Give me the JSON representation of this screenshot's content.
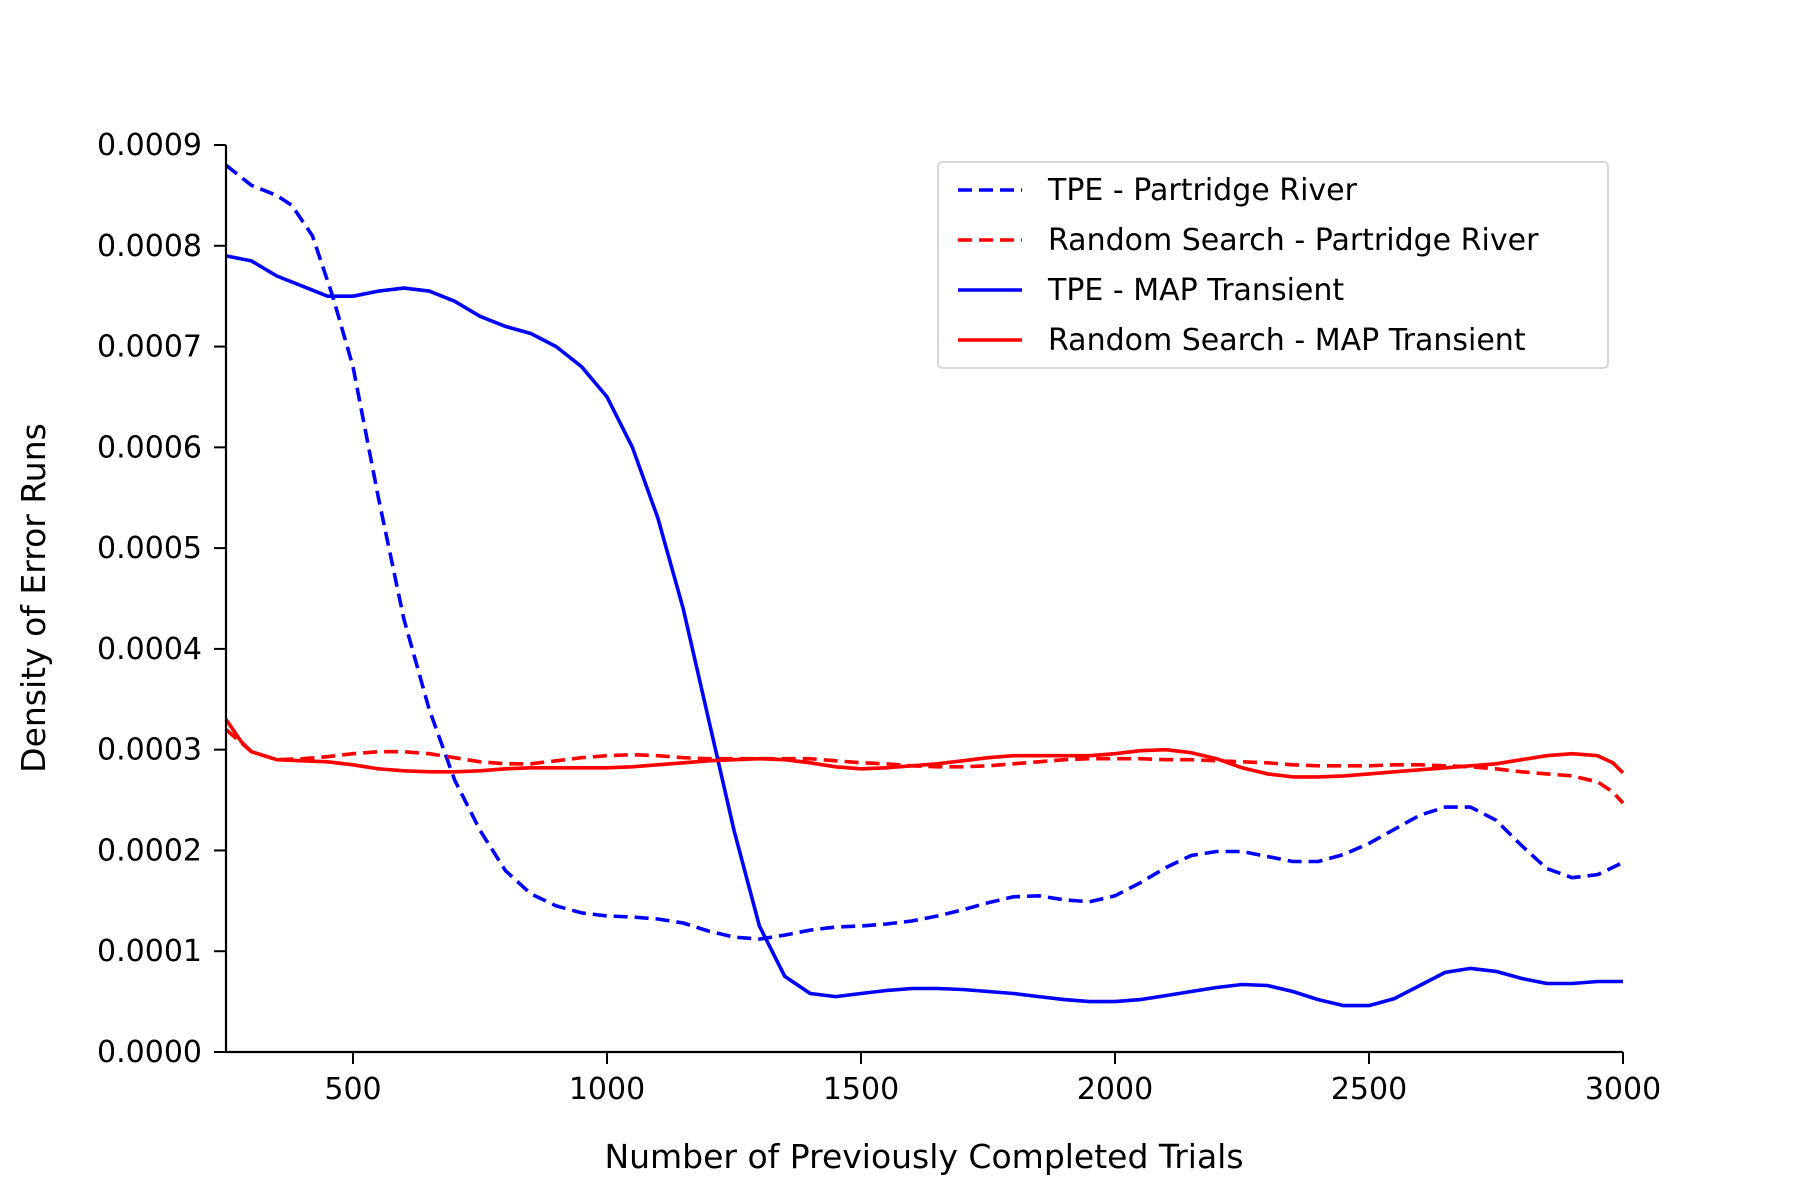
{
  "chart_data": {
    "type": "line",
    "title": "",
    "xlabel": "Number of Previously Completed Trials",
    "ylabel": "Density of Error Runs",
    "xlim": [
      250,
      3000
    ],
    "ylim": [
      0,
      0.0009
    ],
    "xticks": [
      {
        "value": 500,
        "label": "500"
      },
      {
        "value": 1000,
        "label": "1000"
      },
      {
        "value": 1500,
        "label": "1500"
      },
      {
        "value": 2000,
        "label": "2000"
      },
      {
        "value": 2500,
        "label": "2500"
      },
      {
        "value": 3000,
        "label": "3000"
      }
    ],
    "yticks": [
      {
        "value": 0.0,
        "label": "0.0000"
      },
      {
        "value": 0.0001,
        "label": "0.0001"
      },
      {
        "value": 0.0002,
        "label": "0.0002"
      },
      {
        "value": 0.0003,
        "label": "0.0003"
      },
      {
        "value": 0.0004,
        "label": "0.0004"
      },
      {
        "value": 0.0005,
        "label": "0.0005"
      },
      {
        "value": 0.0006,
        "label": "0.0006"
      },
      {
        "value": 0.0007,
        "label": "0.0007"
      },
      {
        "value": 0.0008,
        "label": "0.0008"
      },
      {
        "value": 0.0009,
        "label": "0.0009"
      }
    ],
    "grid": false,
    "legend_position": "top-right",
    "series": [
      {
        "name": "TPE - Partridge River",
        "color": "#0000ff",
        "style": "dashed",
        "points": [
          [
            250,
            0.00088
          ],
          [
            300,
            0.00086
          ],
          [
            350,
            0.00085
          ],
          [
            380,
            0.00084
          ],
          [
            420,
            0.00081
          ],
          [
            460,
            0.00075
          ],
          [
            500,
            0.00068
          ],
          [
            550,
            0.00055
          ],
          [
            600,
            0.00043
          ],
          [
            650,
            0.00034
          ],
          [
            700,
            0.00027
          ],
          [
            750,
            0.00022
          ],
          [
            800,
            0.00018
          ],
          [
            850,
            0.000157
          ],
          [
            900,
            0.000145
          ],
          [
            950,
            0.000138
          ],
          [
            1000,
            0.000135
          ],
          [
            1050,
            0.000134
          ],
          [
            1100,
            0.000132
          ],
          [
            1150,
            0.000128
          ],
          [
            1200,
            0.00012
          ],
          [
            1250,
            0.000114
          ],
          [
            1300,
            0.000112
          ],
          [
            1350,
            0.000116
          ],
          [
            1400,
            0.000121
          ],
          [
            1450,
            0.000124
          ],
          [
            1500,
            0.000125
          ],
          [
            1550,
            0.000127
          ],
          [
            1600,
            0.00013
          ],
          [
            1650,
            0.000135
          ],
          [
            1700,
            0.000141
          ],
          [
            1750,
            0.000148
          ],
          [
            1800,
            0.000154
          ],
          [
            1850,
            0.000155
          ],
          [
            1900,
            0.000151
          ],
          [
            1950,
            0.000149
          ],
          [
            2000,
            0.000155
          ],
          [
            2050,
            0.000168
          ],
          [
            2100,
            0.000183
          ],
          [
            2150,
            0.000195
          ],
          [
            2200,
            0.000199
          ],
          [
            2250,
            0.000199
          ],
          [
            2300,
            0.000194
          ],
          [
            2350,
            0.000189
          ],
          [
            2400,
            0.000189
          ],
          [
            2450,
            0.000196
          ],
          [
            2500,
            0.000207
          ],
          [
            2550,
            0.000221
          ],
          [
            2600,
            0.000235
          ],
          [
            2650,
            0.000243
          ],
          [
            2700,
            0.000243
          ],
          [
            2750,
            0.00023
          ],
          [
            2800,
            0.000205
          ],
          [
            2850,
            0.000182
          ],
          [
            2900,
            0.000173
          ],
          [
            2950,
            0.000176
          ],
          [
            3000,
            0.000188
          ]
        ]
      },
      {
        "name": "Random Search - Partridge River",
        "color": "#ff0000",
        "style": "dashed",
        "points": [
          [
            250,
            0.00032
          ],
          [
            300,
            0.000298
          ],
          [
            350,
            0.00029
          ],
          [
            400,
            0.000291
          ],
          [
            450,
            0.000293
          ],
          [
            500,
            0.000296
          ],
          [
            550,
            0.000298
          ],
          [
            600,
            0.000298
          ],
          [
            650,
            0.000296
          ],
          [
            700,
            0.000292
          ],
          [
            750,
            0.000288
          ],
          [
            800,
            0.000286
          ],
          [
            850,
            0.000286
          ],
          [
            900,
            0.000289
          ],
          [
            950,
            0.000292
          ],
          [
            1000,
            0.000294
          ],
          [
            1050,
            0.000295
          ],
          [
            1100,
            0.000294
          ],
          [
            1150,
            0.000292
          ],
          [
            1200,
            0.000291
          ],
          [
            1250,
            0.000291
          ],
          [
            1300,
            0.000291
          ],
          [
            1350,
            0.000291
          ],
          [
            1400,
            0.000291
          ],
          [
            1450,
            0.000289
          ],
          [
            1500,
            0.000287
          ],
          [
            1550,
            0.000286
          ],
          [
            1600,
            0.000284
          ],
          [
            1650,
            0.000283
          ],
          [
            1700,
            0.000283
          ],
          [
            1750,
            0.000284
          ],
          [
            1800,
            0.000286
          ],
          [
            1850,
            0.000288
          ],
          [
            1900,
            0.00029
          ],
          [
            1950,
            0.000291
          ],
          [
            2000,
            0.000291
          ],
          [
            2050,
            0.000291
          ],
          [
            2100,
            0.00029
          ],
          [
            2150,
            0.00029
          ],
          [
            2200,
            0.000289
          ],
          [
            2250,
            0.000288
          ],
          [
            2300,
            0.000287
          ],
          [
            2350,
            0.000285
          ],
          [
            2400,
            0.000284
          ],
          [
            2450,
            0.000284
          ],
          [
            2500,
            0.000284
          ],
          [
            2550,
            0.000285
          ],
          [
            2600,
            0.000285
          ],
          [
            2650,
            0.000284
          ],
          [
            2700,
            0.000283
          ],
          [
            2750,
            0.000281
          ],
          [
            2800,
            0.000278
          ],
          [
            2850,
            0.000276
          ],
          [
            2900,
            0.000274
          ],
          [
            2950,
            0.000268
          ],
          [
            2980,
            0.000258
          ],
          [
            3000,
            0.000247
          ]
        ]
      },
      {
        "name": "TPE - MAP Transient",
        "color": "#0000ff",
        "style": "solid",
        "points": [
          [
            250,
            0.00079
          ],
          [
            300,
            0.000785
          ],
          [
            350,
            0.00077
          ],
          [
            400,
            0.00076
          ],
          [
            450,
            0.00075
          ],
          [
            500,
            0.00075
          ],
          [
            550,
            0.000755
          ],
          [
            600,
            0.000758
          ],
          [
            650,
            0.000755
          ],
          [
            700,
            0.000745
          ],
          [
            750,
            0.00073
          ],
          [
            800,
            0.00072
          ],
          [
            850,
            0.000713
          ],
          [
            900,
            0.0007
          ],
          [
            950,
            0.00068
          ],
          [
            1000,
            0.00065
          ],
          [
            1050,
            0.0006
          ],
          [
            1100,
            0.00053
          ],
          [
            1150,
            0.00044
          ],
          [
            1200,
            0.00033
          ],
          [
            1250,
            0.00022
          ],
          [
            1300,
            0.000125
          ],
          [
            1350,
            7.5e-05
          ],
          [
            1400,
            5.8e-05
          ],
          [
            1450,
            5.5e-05
          ],
          [
            1500,
            5.8e-05
          ],
          [
            1550,
            6.1e-05
          ],
          [
            1600,
            6.3e-05
          ],
          [
            1650,
            6.3e-05
          ],
          [
            1700,
            6.2e-05
          ],
          [
            1750,
            6e-05
          ],
          [
            1800,
            5.8e-05
          ],
          [
            1850,
            5.5e-05
          ],
          [
            1900,
            5.2e-05
          ],
          [
            1950,
            5e-05
          ],
          [
            2000,
            5e-05
          ],
          [
            2050,
            5.2e-05
          ],
          [
            2100,
            5.6e-05
          ],
          [
            2150,
            6e-05
          ],
          [
            2200,
            6.4e-05
          ],
          [
            2250,
            6.7e-05
          ],
          [
            2300,
            6.6e-05
          ],
          [
            2350,
            6e-05
          ],
          [
            2400,
            5.2e-05
          ],
          [
            2450,
            4.6e-05
          ],
          [
            2500,
            4.6e-05
          ],
          [
            2550,
            5.3e-05
          ],
          [
            2600,
            6.6e-05
          ],
          [
            2650,
            7.9e-05
          ],
          [
            2700,
            8.3e-05
          ],
          [
            2750,
            8e-05
          ],
          [
            2800,
            7.3e-05
          ],
          [
            2850,
            6.8e-05
          ],
          [
            2900,
            6.8e-05
          ],
          [
            2950,
            7e-05
          ],
          [
            3000,
            7e-05
          ]
        ]
      },
      {
        "name": "Random Search - MAP Transient",
        "color": "#ff0000",
        "style": "solid",
        "points": [
          [
            250,
            0.00033
          ],
          [
            280,
            0.000308
          ],
          [
            300,
            0.000298
          ],
          [
            350,
            0.00029
          ],
          [
            400,
            0.000289
          ],
          [
            450,
            0.000288
          ],
          [
            500,
            0.000285
          ],
          [
            550,
            0.000281
          ],
          [
            600,
            0.000279
          ],
          [
            650,
            0.000278
          ],
          [
            700,
            0.000278
          ],
          [
            750,
            0.000279
          ],
          [
            800,
            0.000281
          ],
          [
            850,
            0.000282
          ],
          [
            900,
            0.000282
          ],
          [
            950,
            0.000282
          ],
          [
            1000,
            0.000282
          ],
          [
            1050,
            0.000283
          ],
          [
            1100,
            0.000285
          ],
          [
            1150,
            0.000287
          ],
          [
            1200,
            0.000289
          ],
          [
            1250,
            0.00029
          ],
          [
            1300,
            0.000291
          ],
          [
            1350,
            0.00029
          ],
          [
            1400,
            0.000287
          ],
          [
            1450,
            0.000283
          ],
          [
            1500,
            0.000281
          ],
          [
            1550,
            0.000282
          ],
          [
            1600,
            0.000284
          ],
          [
            1650,
            0.000286
          ],
          [
            1700,
            0.000289
          ],
          [
            1750,
            0.000292
          ],
          [
            1800,
            0.000294
          ],
          [
            1850,
            0.000294
          ],
          [
            1900,
            0.000294
          ],
          [
            1950,
            0.000294
          ],
          [
            2000,
            0.000296
          ],
          [
            2050,
            0.000299
          ],
          [
            2100,
            0.0003
          ],
          [
            2150,
            0.000297
          ],
          [
            2200,
            0.000291
          ],
          [
            2250,
            0.000282
          ],
          [
            2300,
            0.000276
          ],
          [
            2350,
            0.000273
          ],
          [
            2400,
            0.000273
          ],
          [
            2450,
            0.000274
          ],
          [
            2500,
            0.000276
          ],
          [
            2550,
            0.000278
          ],
          [
            2600,
            0.00028
          ],
          [
            2650,
            0.000282
          ],
          [
            2700,
            0.000284
          ],
          [
            2750,
            0.000286
          ],
          [
            2800,
            0.00029
          ],
          [
            2850,
            0.000294
          ],
          [
            2900,
            0.000296
          ],
          [
            2950,
            0.000294
          ],
          [
            2980,
            0.000287
          ],
          [
            3000,
            0.000277
          ]
        ]
      }
    ]
  }
}
